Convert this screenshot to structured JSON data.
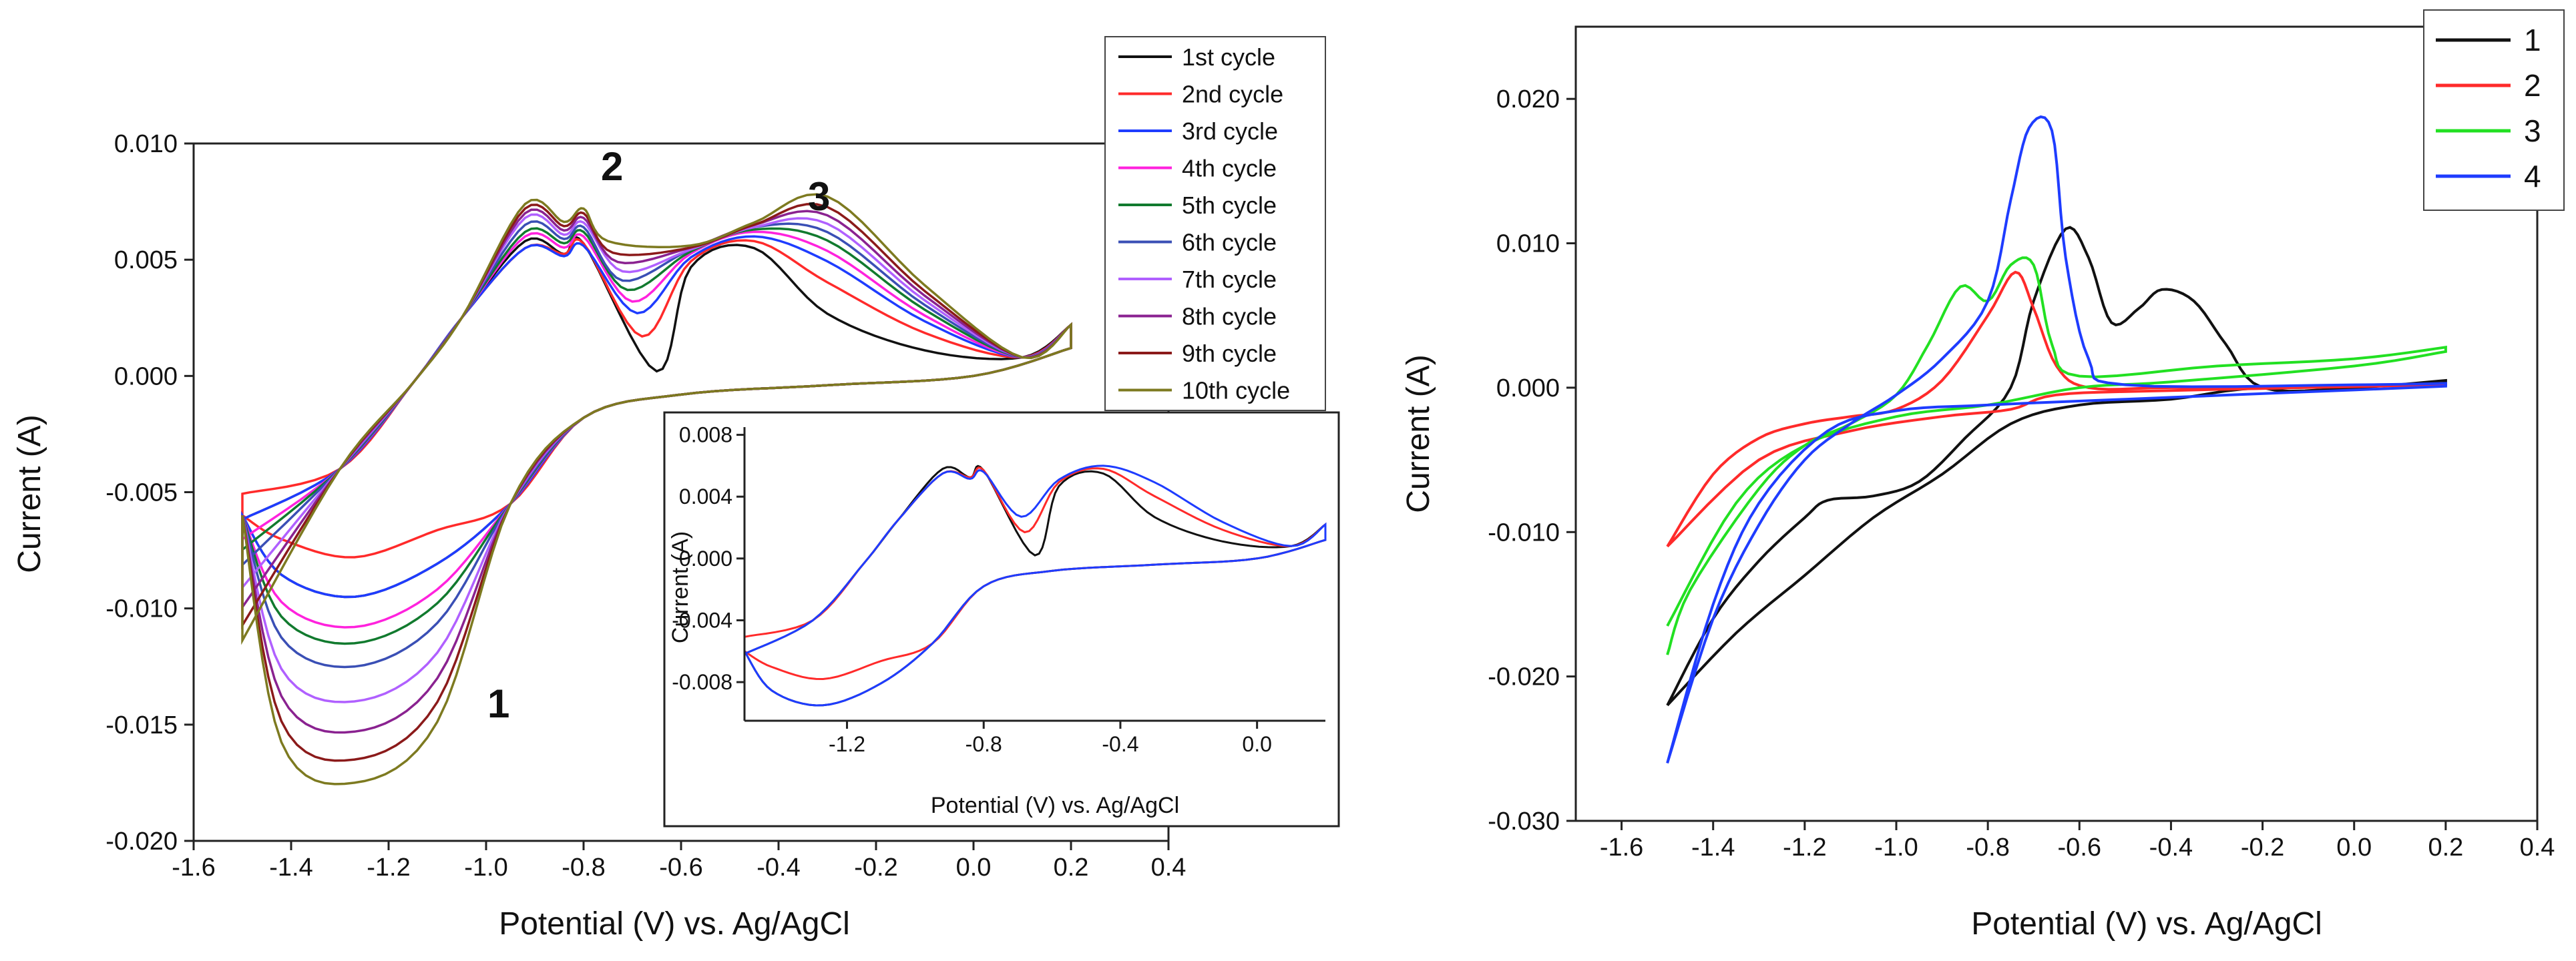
{
  "chart_data": [
    {
      "type": "line",
      "xlabel": "Potential (V) vs. Ag/AgCl",
      "ylabel": "Current (A)",
      "xlim": [
        -1.6,
        0.4
      ],
      "ylim": [
        -0.02,
        0.01
      ],
      "x_ticks": [
        "-1.6",
        "-1.4",
        "-1.2",
        "-1.0",
        "-0.8",
        "-0.6",
        "-0.4",
        "-0.2",
        "0.0",
        "0.2",
        "0.4"
      ],
      "y_ticks": [
        "0.010",
        "0.005",
        "0.000",
        "-0.005",
        "-0.010",
        "-0.015",
        "-0.020"
      ],
      "legend_position": "top-right",
      "annotations": [
        {
          "text": "1",
          "x": -1.05,
          "y": -0.0142
        },
        {
          "text": "2",
          "x": -0.8,
          "y": 0.0088
        },
        {
          "text": "3",
          "x": -0.35,
          "y": 0.0075
        }
      ],
      "series": [
        {
          "name": "1st cycle",
          "color": "#111111",
          "ox": -0.65,
          "oy": 0.0002,
          "rp": -0.0095,
          "pk": [
            0.0058,
            0.0057,
            0.0055
          ]
        },
        {
          "name": "2nd cycle",
          "color": "#ff2a2a",
          "ox": -0.68,
          "oy": 0.0017,
          "rp": -0.0078,
          "pk": [
            0.0055,
            0.0057,
            0.0058
          ]
        },
        {
          "name": "3rd cycle",
          "color": "#1e3cff",
          "ox": -0.69,
          "oy": 0.0027,
          "rp": -0.0095,
          "pk": [
            0.0055,
            0.0056,
            0.006
          ]
        },
        {
          "name": "4th cycle",
          "color": "#ff22dd",
          "ox": -0.7,
          "oy": 0.0032,
          "rp": -0.0108,
          "pk": [
            0.006,
            0.006,
            0.0062
          ]
        },
        {
          "name": "5th cycle",
          "color": "#117a2e",
          "ox": -0.71,
          "oy": 0.0037,
          "rp": -0.0115,
          "pk": [
            0.0062,
            0.0062,
            0.0063
          ]
        },
        {
          "name": "6th cycle",
          "color": "#3a4fb5",
          "ox": -0.72,
          "oy": 0.0041,
          "rp": -0.0125,
          "pk": [
            0.0065,
            0.0064,
            0.0064
          ]
        },
        {
          "name": "7th cycle",
          "color": "#b060ff",
          "ox": -0.72,
          "oy": 0.0045,
          "rp": -0.014,
          "pk": [
            0.0068,
            0.0066,
            0.0064
          ]
        },
        {
          "name": "8th cycle",
          "color": "#8a2290",
          "ox": -0.73,
          "oy": 0.0049,
          "rp": -0.0153,
          "pk": [
            0.007,
            0.0068,
            0.0065
          ]
        },
        {
          "name": "9th cycle",
          "color": "#8b1a1a",
          "ox": -0.74,
          "oy": 0.0053,
          "rp": -0.0165,
          "pk": [
            0.0072,
            0.007,
            0.0065
          ]
        },
        {
          "name": "10th cycle",
          "color": "#7d7a20",
          "ox": -0.75,
          "oy": 0.0058,
          "rp": -0.0175,
          "pk": [
            0.0074,
            0.0072,
            0.0066
          ]
        }
      ]
    },
    {
      "type": "line",
      "role": "inset",
      "xlabel": "Potential (V) vs. Ag/AgCl",
      "ylabel": "Current (A)",
      "xlim": [
        -1.5,
        0.2
      ],
      "ylim": [
        -0.0105,
        0.0085
      ],
      "x_ticks": [
        "-1.2",
        "-0.8",
        "-0.4",
        "0.0"
      ],
      "y_ticks": [
        "0.008",
        "0.004",
        "0.000",
        "-0.004",
        "-0.008"
      ],
      "series_colors": [
        "#111111",
        "#ff2a2a",
        "#1e3cff"
      ]
    },
    {
      "type": "line",
      "xlabel": "Potential (V) vs. Ag/AgCl",
      "ylabel": "Current (A)",
      "xlim": [
        -1.7,
        0.4
      ],
      "ylim": [
        -0.03,
        0.025
      ],
      "x_ticks": [
        "-1.6",
        "-1.4",
        "-1.2",
        "-1.0",
        "-0.8",
        "-0.6",
        "-0.4",
        "-0.2",
        "0.0",
        "0.2",
        "0.4"
      ],
      "y_ticks": [
        "0.020",
        "0.010",
        "0.000",
        "-0.010",
        "-0.020",
        "-0.030"
      ],
      "legend_position": "top-right",
      "series": [
        {
          "name": "1",
          "color": "#111111",
          "forward": [
            [
              -1.5,
              -0.022
            ],
            [
              -1.4,
              -0.016
            ],
            [
              -1.3,
              -0.012
            ],
            [
              -1.2,
              -0.009
            ],
            [
              -1.15,
              -0.0078
            ],
            [
              -1.05,
              -0.0075
            ],
            [
              -0.95,
              -0.0065
            ],
            [
              -0.85,
              -0.0035
            ],
            [
              -0.75,
              0.0
            ],
            [
              -0.7,
              0.006
            ],
            [
              -0.63,
              0.011
            ],
            [
              -0.58,
              0.009
            ],
            [
              -0.53,
              0.0045
            ],
            [
              -0.47,
              0.0055
            ],
            [
              -0.42,
              0.0068
            ],
            [
              -0.35,
              0.006
            ],
            [
              -0.28,
              0.003
            ],
            [
              -0.2,
              0.0
            ],
            [
              0.0,
              0.0
            ],
            [
              0.2,
              0.0005
            ]
          ],
          "reverse": [
            [
              0.2,
              0.0002
            ],
            [
              -0.2,
              0.0
            ],
            [
              -0.4,
              -0.0008
            ],
            [
              -0.6,
              -0.0012
            ],
            [
              -0.75,
              -0.0025
            ],
            [
              -0.9,
              -0.006
            ],
            [
              -1.05,
              -0.009
            ],
            [
              -1.2,
              -0.013
            ],
            [
              -1.35,
              -0.017
            ],
            [
              -1.5,
              -0.022
            ]
          ]
        },
        {
          "name": "2",
          "color": "#ff2a2a",
          "forward": [
            [
              -1.5,
              -0.011
            ],
            [
              -1.4,
              -0.006
            ],
            [
              -1.3,
              -0.0035
            ],
            [
              -1.2,
              -0.0025
            ],
            [
              -1.1,
              -0.002
            ],
            [
              -1.0,
              -0.0015
            ],
            [
              -0.9,
              0.0005
            ],
            [
              -0.8,
              0.005
            ],
            [
              -0.74,
              0.008
            ],
            [
              -0.7,
              0.0055
            ],
            [
              -0.65,
              0.0015
            ],
            [
              -0.58,
              0.0
            ],
            [
              -0.4,
              0.0
            ],
            [
              0.0,
              0.0001
            ],
            [
              0.2,
              0.0002
            ]
          ],
          "reverse": [
            [
              0.2,
              0.0002
            ],
            [
              -0.4,
              -0.0002
            ],
            [
              -0.65,
              -0.0005
            ],
            [
              -0.75,
              -0.0015
            ],
            [
              -0.9,
              -0.002
            ],
            [
              -1.1,
              -0.003
            ],
            [
              -1.3,
              -0.005
            ],
            [
              -1.5,
              -0.011
            ]
          ]
        },
        {
          "name": "3",
          "color": "#22e022",
          "forward": [
            [
              -1.5,
              -0.0185
            ],
            [
              -1.45,
              -0.014
            ],
            [
              -1.3,
              -0.007
            ],
            [
              -1.2,
              -0.004
            ],
            [
              -1.1,
              -0.0025
            ],
            [
              -1.0,
              -0.0005
            ],
            [
              -0.93,
              0.003
            ],
            [
              -0.86,
              0.007
            ],
            [
              -0.8,
              0.006
            ],
            [
              -0.75,
              0.0085
            ],
            [
              -0.7,
              0.0085
            ],
            [
              -0.66,
              0.003
            ],
            [
              -0.6,
              0.0008
            ],
            [
              -0.3,
              0.0015
            ],
            [
              0.0,
              0.002
            ],
            [
              0.2,
              0.0028
            ]
          ],
          "reverse": [
            [
              0.2,
              0.0025
            ],
            [
              0.0,
              0.0015
            ],
            [
              -0.4,
              0.0004
            ],
            [
              -0.6,
              0.0
            ],
            [
              -0.8,
              -0.0012
            ],
            [
              -1.0,
              -0.002
            ],
            [
              -1.2,
              -0.004
            ],
            [
              -1.35,
              -0.008
            ],
            [
              -1.5,
              -0.0165
            ]
          ]
        },
        {
          "name": "4",
          "color": "#1e3cff",
          "forward": [
            [
              -1.5,
              -0.026
            ],
            [
              -1.4,
              -0.016
            ],
            [
              -1.3,
              -0.0095
            ],
            [
              -1.2,
              -0.005
            ],
            [
              -1.1,
              -0.0025
            ],
            [
              -1.0,
              -0.0005
            ],
            [
              -0.9,
              0.002
            ],
            [
              -0.8,
              0.006
            ],
            [
              -0.75,
              0.013
            ],
            [
              -0.71,
              0.018
            ],
            [
              -0.66,
              0.0178
            ],
            [
              -0.63,
              0.009
            ],
            [
              -0.58,
              0.002
            ],
            [
              -0.5,
              0.0002
            ],
            [
              0.0,
              0.0002
            ],
            [
              0.2,
              0.0003
            ]
          ],
          "reverse": [
            [
              0.2,
              0.0001
            ],
            [
              -0.5,
              -0.0008
            ],
            [
              -0.8,
              -0.0012
            ],
            [
              -1.0,
              -0.0016
            ],
            [
              -1.15,
              -0.003
            ],
            [
              -1.3,
              -0.008
            ],
            [
              -1.4,
              -0.015
            ],
            [
              -1.5,
              -0.026
            ]
          ]
        }
      ]
    }
  ]
}
